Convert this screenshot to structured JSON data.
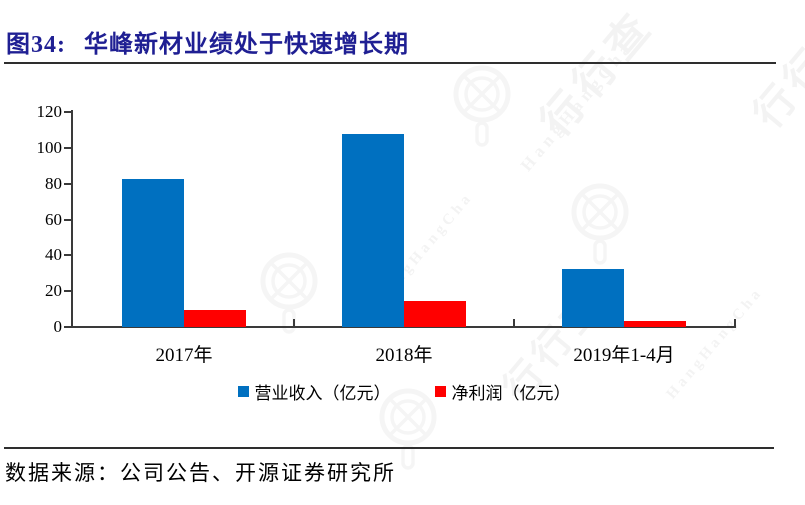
{
  "title": {
    "prefix": "图34:",
    "text": "华峰新材业绩处于快速增长期"
  },
  "source": "数据来源：公司公告、开源证券研究所",
  "watermark": {
    "logo_icon": "magnifier-logo-icon",
    "text_cn": "行行查",
    "text_en": "HangHangCha"
  },
  "colors": {
    "title": "#1f1f93",
    "axis": "#3a3a3a",
    "revenue_blue": "#0070C0",
    "profit_red": "#FF0000"
  },
  "chart_data": {
    "type": "bar",
    "categories": [
      "2017年",
      "2018年",
      "2019年1-4月"
    ],
    "series": [
      {
        "name": "营业收入（亿元）",
        "color": "#0070C0",
        "values": [
          82.5,
          107.5,
          32.5
        ]
      },
      {
        "name": "净利润（亿元）",
        "color": "#FF0000",
        "values": [
          9.5,
          14.5,
          3.3
        ]
      }
    ],
    "title": "",
    "xlabel": "",
    "ylabel": "",
    "ylim": [
      0,
      120
    ],
    "ytick_step": 20,
    "ytick_labels": [
      "0",
      "20",
      "40",
      "60",
      "80",
      "100",
      "120"
    ],
    "grid": false,
    "legend_position": "bottom"
  }
}
